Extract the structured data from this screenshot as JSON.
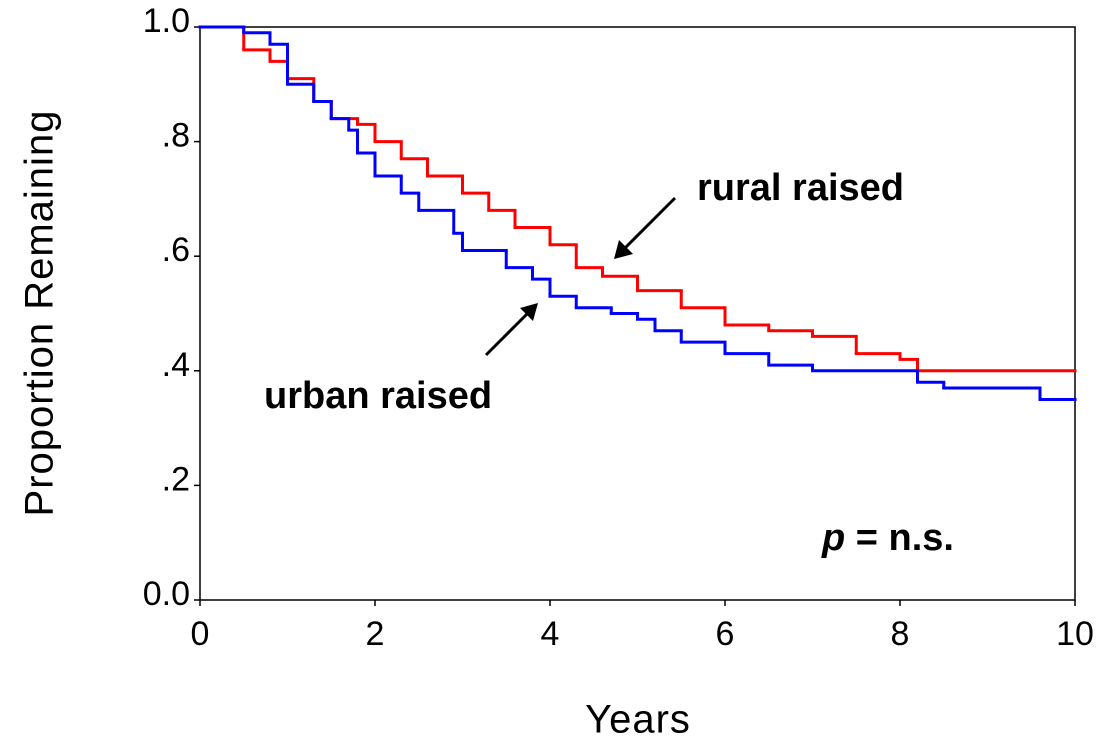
{
  "chart_data": {
    "type": "step",
    "xlabel": "Years",
    "ylabel": "Proportion Remaining",
    "xlim": [
      0,
      10
    ],
    "xticks": [
      0,
      2,
      4,
      6,
      8,
      10
    ],
    "ylim": [
      0,
      1
    ],
    "yticks": [
      {
        "value": 0,
        "label": "0.0"
      },
      {
        "value": 0.2,
        "label": ".2"
      },
      {
        "value": 0.4,
        "label": ".4"
      },
      {
        "value": 0.6,
        "label": ".6"
      },
      {
        "value": 0.8,
        "label": ".8"
      },
      {
        "value": 1,
        "label": "1.0"
      }
    ],
    "annotations": [
      "rural raised",
      "urban raised"
    ],
    "p_symbol": "p",
    "p_text": "= n.s.",
    "series": [
      {
        "name": "rural raised",
        "color": "#ff0000",
        "x": [
          0,
          0.5,
          0.8,
          1.0,
          1.3,
          1.5,
          1.8,
          2.0,
          2.3,
          2.6,
          3.0,
          3.3,
          3.6,
          4.0,
          4.3,
          4.6,
          5.0,
          5.5,
          6.0,
          6.5,
          7.0,
          7.5,
          8.0,
          8.2,
          10
        ],
        "values": [
          1.0,
          0.96,
          0.94,
          0.91,
          0.87,
          0.84,
          0.83,
          0.8,
          0.77,
          0.74,
          0.71,
          0.68,
          0.65,
          0.62,
          0.58,
          0.565,
          0.54,
          0.51,
          0.48,
          0.47,
          0.46,
          0.43,
          0.42,
          0.4,
          0.4
        ]
      },
      {
        "name": "urban raised",
        "color": "#0000ff",
        "x": [
          0,
          0.5,
          0.8,
          1.0,
          1.3,
          1.5,
          1.7,
          1.8,
          2.0,
          2.3,
          2.5,
          2.9,
          3.0,
          3.5,
          3.8,
          4.0,
          4.3,
          4.7,
          5.0,
          5.2,
          5.5,
          6.0,
          6.5,
          7.0,
          8.2,
          8.5,
          9.6,
          10
        ],
        "values": [
          1.0,
          0.99,
          0.97,
          0.9,
          0.87,
          0.84,
          0.82,
          0.78,
          0.74,
          0.71,
          0.68,
          0.64,
          0.61,
          0.58,
          0.56,
          0.53,
          0.51,
          0.5,
          0.49,
          0.47,
          0.45,
          0.43,
          0.41,
          0.4,
          0.38,
          0.37,
          0.35,
          0.35
        ]
      }
    ]
  }
}
